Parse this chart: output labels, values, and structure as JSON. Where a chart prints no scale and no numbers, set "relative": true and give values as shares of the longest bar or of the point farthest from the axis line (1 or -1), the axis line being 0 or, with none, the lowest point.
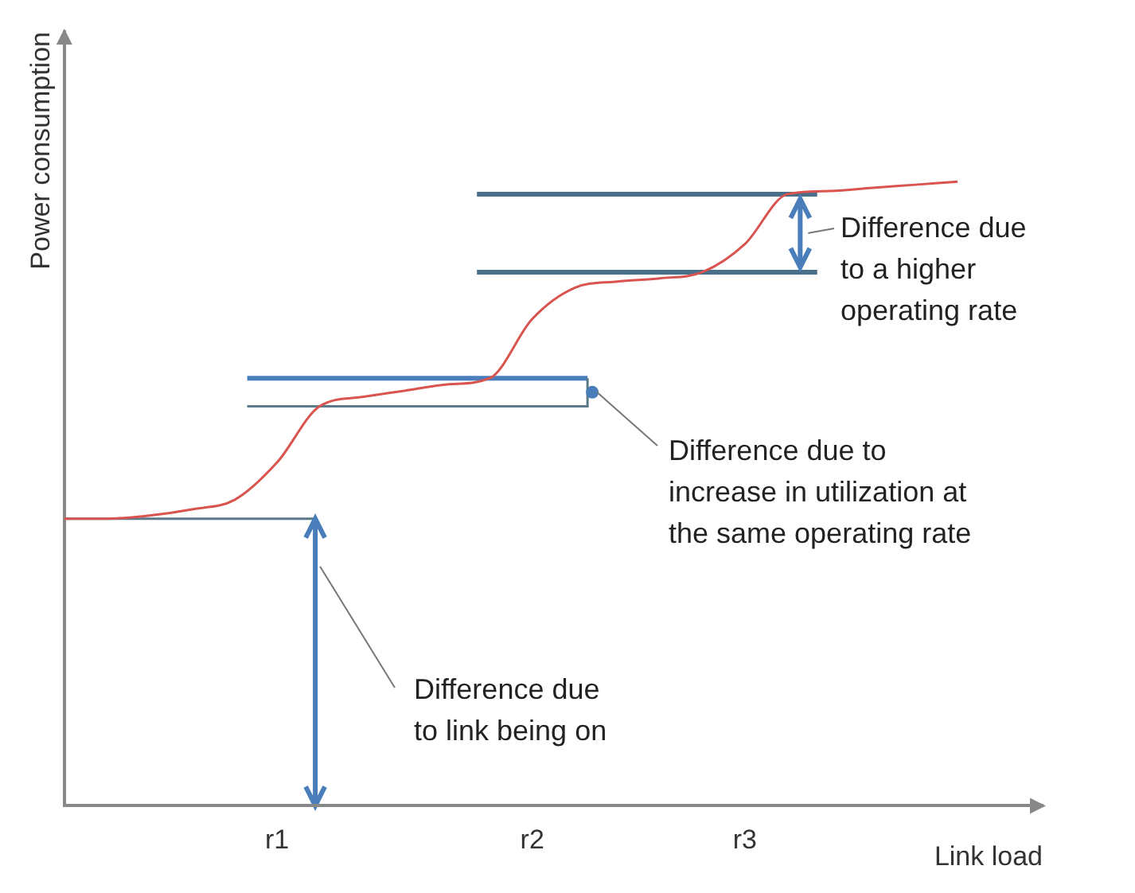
{
  "chart_data": {
    "type": "line",
    "relative": true,
    "xlabel": "Link load",
    "ylabel": "Power consumption",
    "categories": [
      null,
      null,
      null,
      null,
      null,
      "r1",
      null,
      null,
      null,
      null,
      null,
      "r2",
      null,
      null,
      null,
      null,
      "r3",
      null,
      null,
      null,
      null,
      null,
      null,
      null
    ],
    "series": [
      {
        "color": "#d9534f",
        "values": [
          0.46,
          0.46,
          0.465,
          0.475,
          0.49,
          0.55,
          0.64,
          0.655,
          0.665,
          0.675,
          0.685,
          0.78,
          0.83,
          0.84,
          0.845,
          0.855,
          0.9,
          0.98,
          0.985,
          0.99,
          0.995,
          1,
          null,
          null
        ]
      }
    ],
    "annotations": [
      "Difference due\nto a higher\noperating rate",
      "Difference due to\nincrease in utilization at\nthe same operating rate",
      "Difference due\nto link being on"
    ],
    "marker": "none",
    "grid": false,
    "legend": false
  }
}
